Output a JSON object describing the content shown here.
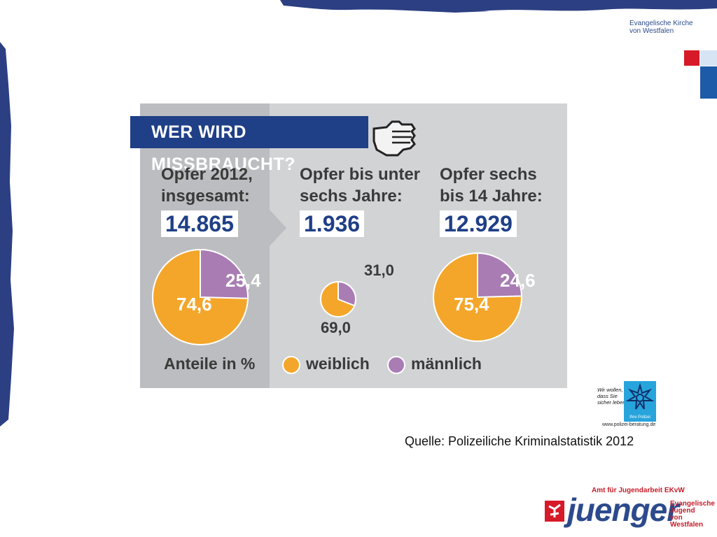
{
  "header": {
    "church_line1": "Evangelische Kirche",
    "church_line2": "von Westfalen"
  },
  "infographic": {
    "title": "WER WIRD MISSBRAUCHT?",
    "groups": [
      {
        "label_line1": "Opfer 2012,",
        "label_line2": "insgesamt:",
        "total": "14.865",
        "female": "74,6",
        "male": "25,4"
      },
      {
        "label_line1": "Opfer bis unter",
        "label_line2": "sechs Jahre:",
        "total": "1.936",
        "female": "69,0",
        "male": "31,0"
      },
      {
        "label_line1": "Opfer sechs",
        "label_line2": "bis 14 Jahre:",
        "total": "12.929",
        "female": "75,4",
        "male": "24,6"
      }
    ],
    "legend": {
      "caption": "Anteile in %",
      "female_label": "weiblich",
      "male_label": "männlich"
    },
    "colors": {
      "female": "#f4a62a",
      "male": "#a97cb4",
      "banner": "#1f3f86",
      "number": "#1f3f86"
    }
  },
  "chart_data": {
    "type": "pie",
    "title": "WER WIRD MISSBRAUCHT?",
    "categories": [
      "weiblich",
      "männlich"
    ],
    "pies": [
      {
        "name": "Opfer 2012, insgesamt",
        "total": 14865,
        "values": [
          74.6,
          25.4
        ]
      },
      {
        "name": "Opfer bis unter sechs Jahre",
        "total": 1936,
        "values": [
          69.0,
          31.0
        ]
      },
      {
        "name": "Opfer sechs bis 14 Jahre",
        "total": 12929,
        "values": [
          75.4,
          24.6
        ]
      }
    ],
    "unit": "Anteile in %"
  },
  "source": "Quelle: Polizeiliche Kriminalstatistik 2012",
  "police": {
    "line1": "Wir wollen,",
    "line2": "dass Sie",
    "line3": "sicher leben.",
    "badge": "Ihre Polizei",
    "url": "www.polizei-beratung.de"
  },
  "footer": {
    "amt": "Amt für Jugendarbeit EKvW",
    "brand": "juenger",
    "ej_line1": "Evangelische",
    "ej_line2": "Jugend",
    "ej_line3": "von Westfalen"
  }
}
